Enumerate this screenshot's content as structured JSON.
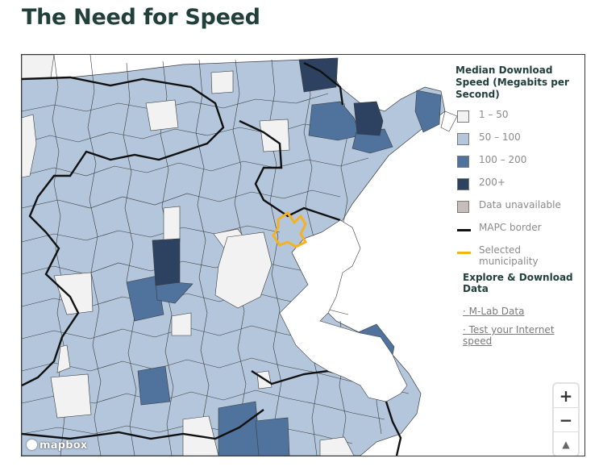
{
  "page": {
    "title": "The Need for Speed"
  },
  "legend": {
    "title": "Median Download Speed (Megabits per Second)",
    "items": [
      {
        "label": "1 – 50",
        "color": "#f2f2f2",
        "kind": "fill"
      },
      {
        "label": "50 – 100",
        "color": "#b3c6dc",
        "kind": "fill"
      },
      {
        "label": "100 – 200",
        "color": "#4f739c",
        "kind": "fill"
      },
      {
        "label": "200+",
        "color": "#2c4260",
        "kind": "fill"
      },
      {
        "label": "Data unavailable",
        "color": "#c7bcbc",
        "kind": "fill"
      },
      {
        "label": "MAPC border",
        "color": "#111111",
        "kind": "line"
      },
      {
        "label": "Selected municipality",
        "color": "#f5b122",
        "kind": "line"
      }
    ]
  },
  "explore": {
    "title": "Explore & Download Data",
    "links": [
      "· M-Lab Data",
      "· Test your Internet speed"
    ]
  },
  "map": {
    "attribution": "mapbox",
    "zoom_in": "+",
    "zoom_out": "−",
    "compass": "▲",
    "colors": {
      "low": "#f2f2f2",
      "mid": "#b3c6dc",
      "high": "#4f739c",
      "top": "#2c4260",
      "border": "#111111",
      "selected": "#f5b122"
    }
  }
}
